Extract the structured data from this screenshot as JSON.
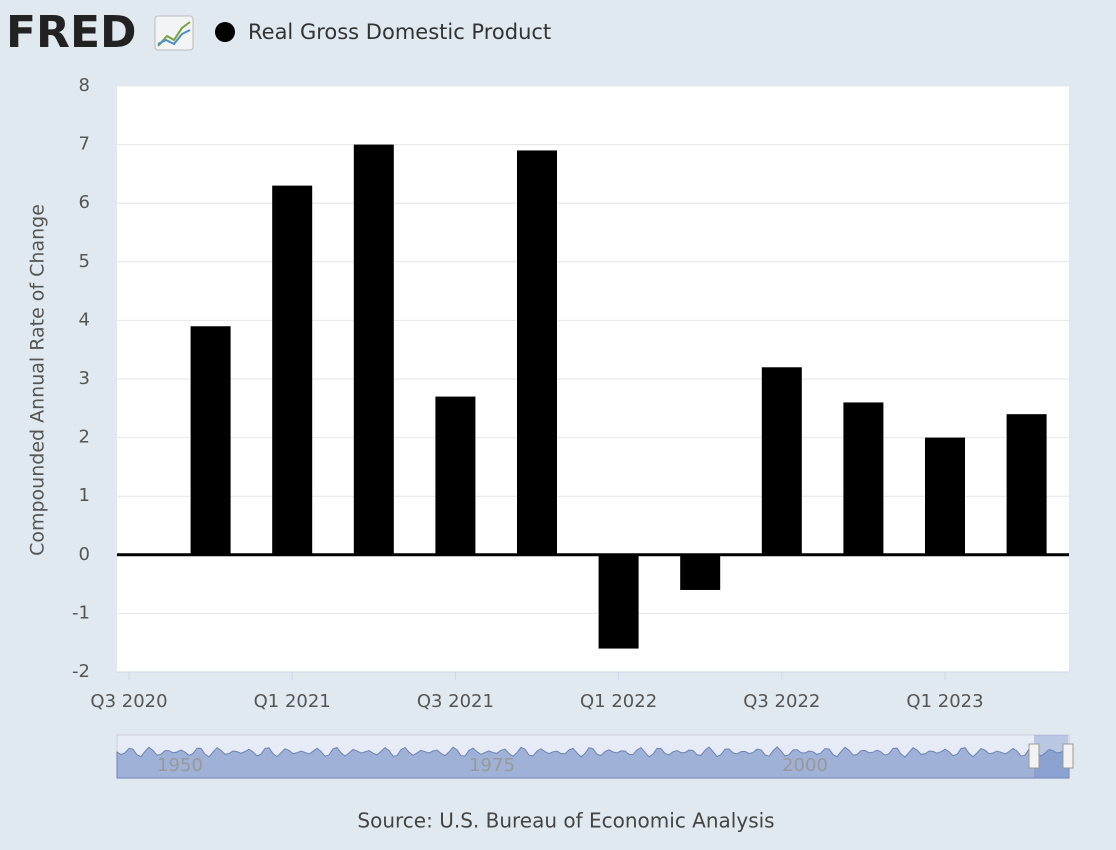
{
  "logo": "FRED",
  "chart_data": {
    "type": "bar",
    "series": [
      {
        "name": "Real Gross Domestic Product",
        "color": "#000000",
        "values": [
          null,
          3.9,
          6.3,
          7.0,
          2.7,
          6.9,
          -1.6,
          -0.6,
          3.2,
          2.6,
          2.0,
          2.4
        ]
      }
    ],
    "categories": [
      "Q3 2020",
      null,
      "Q1 2021",
      null,
      "Q3 2021",
      null,
      "Q1 2022",
      null,
      "Q3 2022",
      null,
      "Q1 2023",
      null
    ],
    "y_label": "Compounded Annual Rate of Change",
    "ylim": [
      -2,
      8
    ],
    "yticks": [
      -2,
      -1,
      0,
      1,
      2,
      3,
      4,
      5,
      6,
      7,
      8
    ],
    "grid": true
  },
  "navigator": {
    "labels": [
      "1950",
      "1975",
      "2000"
    ]
  },
  "source": "Source: U.S. Bureau of Economic Analysis"
}
